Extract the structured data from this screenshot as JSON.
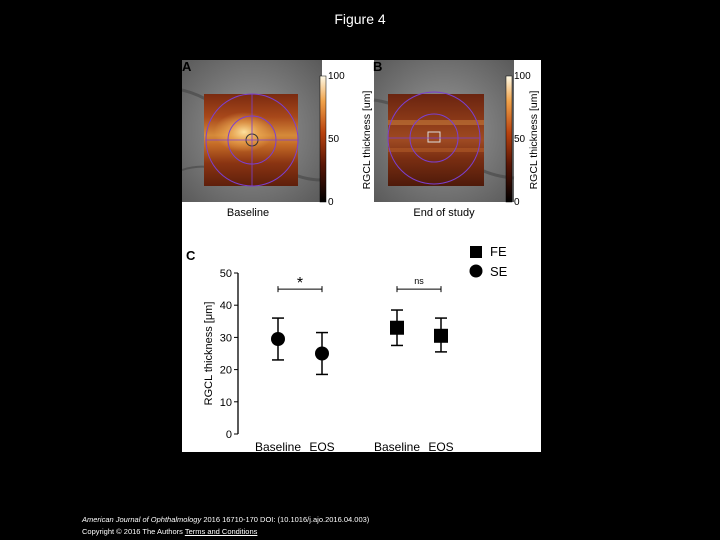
{
  "slide": {
    "title": "Figure 4"
  },
  "panels": {
    "a": {
      "letter": "A",
      "caption": "Baseline",
      "colorbar": {
        "label": "RGCL thickness [um]",
        "ticks": [
          "100",
          "50",
          "0"
        ]
      }
    },
    "b": {
      "letter": "B",
      "caption": "End of study",
      "colorbar": {
        "label": "RGCL thickness [um]",
        "ticks": [
          "100",
          "50",
          "0"
        ]
      }
    },
    "c": {
      "letter": "C",
      "chart_data": {
        "type": "scatter",
        "ylabel": "RGCL thickness [μm]",
        "ylim": [
          0,
          50
        ],
        "yticks": [
          "0",
          "10",
          "20",
          "30",
          "40",
          "50"
        ],
        "categories": [
          "Baseline",
          "EOS",
          "Baseline",
          "EOS"
        ],
        "series": [
          {
            "name": "SE",
            "marker": "circle",
            "points": [
              {
                "category": 0,
                "mean": 29.5,
                "low": 23,
                "high": 36
              },
              {
                "category": 1,
                "mean": 25,
                "low": 18.5,
                "high": 31.5
              }
            ]
          },
          {
            "name": "FE",
            "marker": "square",
            "points": [
              {
                "category": 2,
                "mean": 33,
                "low": 27.5,
                "high": 38.5
              },
              {
                "category": 3,
                "mean": 30.5,
                "low": 25.5,
                "high": 36
              }
            ]
          }
        ],
        "annotations": [
          {
            "text": "*",
            "from": 0,
            "to": 1,
            "y": 45
          },
          {
            "text": "ns",
            "from": 2,
            "to": 3,
            "y": 45
          }
        ],
        "legend": {
          "position": "top-right",
          "entries": [
            "FE",
            "SE"
          ]
        }
      }
    }
  },
  "footer": {
    "journal": "American Journal of Ophthalmology",
    "citation": " 2016 16710-170 DOI: (10.1016/j.ajo.2016.04.003)",
    "copyright": "Copyright © 2016 The Authors ",
    "link": "Terms and Conditions"
  }
}
